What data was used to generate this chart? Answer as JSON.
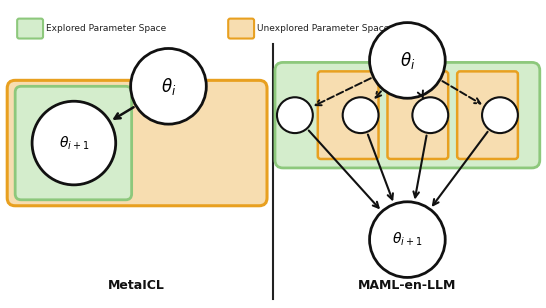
{
  "fig_width": 5.46,
  "fig_height": 3.08,
  "dpi": 100,
  "bg_color": "#ffffff",
  "explored_color": "#8dc87c",
  "explored_fill": "#d4edcc",
  "unexplored_color": "#e8a020",
  "unexplored_fill": "#f7ddb0",
  "legend_explored_label": "Explored Parameter Space",
  "legend_unexplored_label": "Unexplored Parameter Space",
  "metacl_label": "MetaICL",
  "maml_label": "MAML-en-LLM",
  "node_fill": "#ffffff",
  "node_edge": "#111111",
  "arrow_color": "#111111",
  "divider_color": "#222222"
}
